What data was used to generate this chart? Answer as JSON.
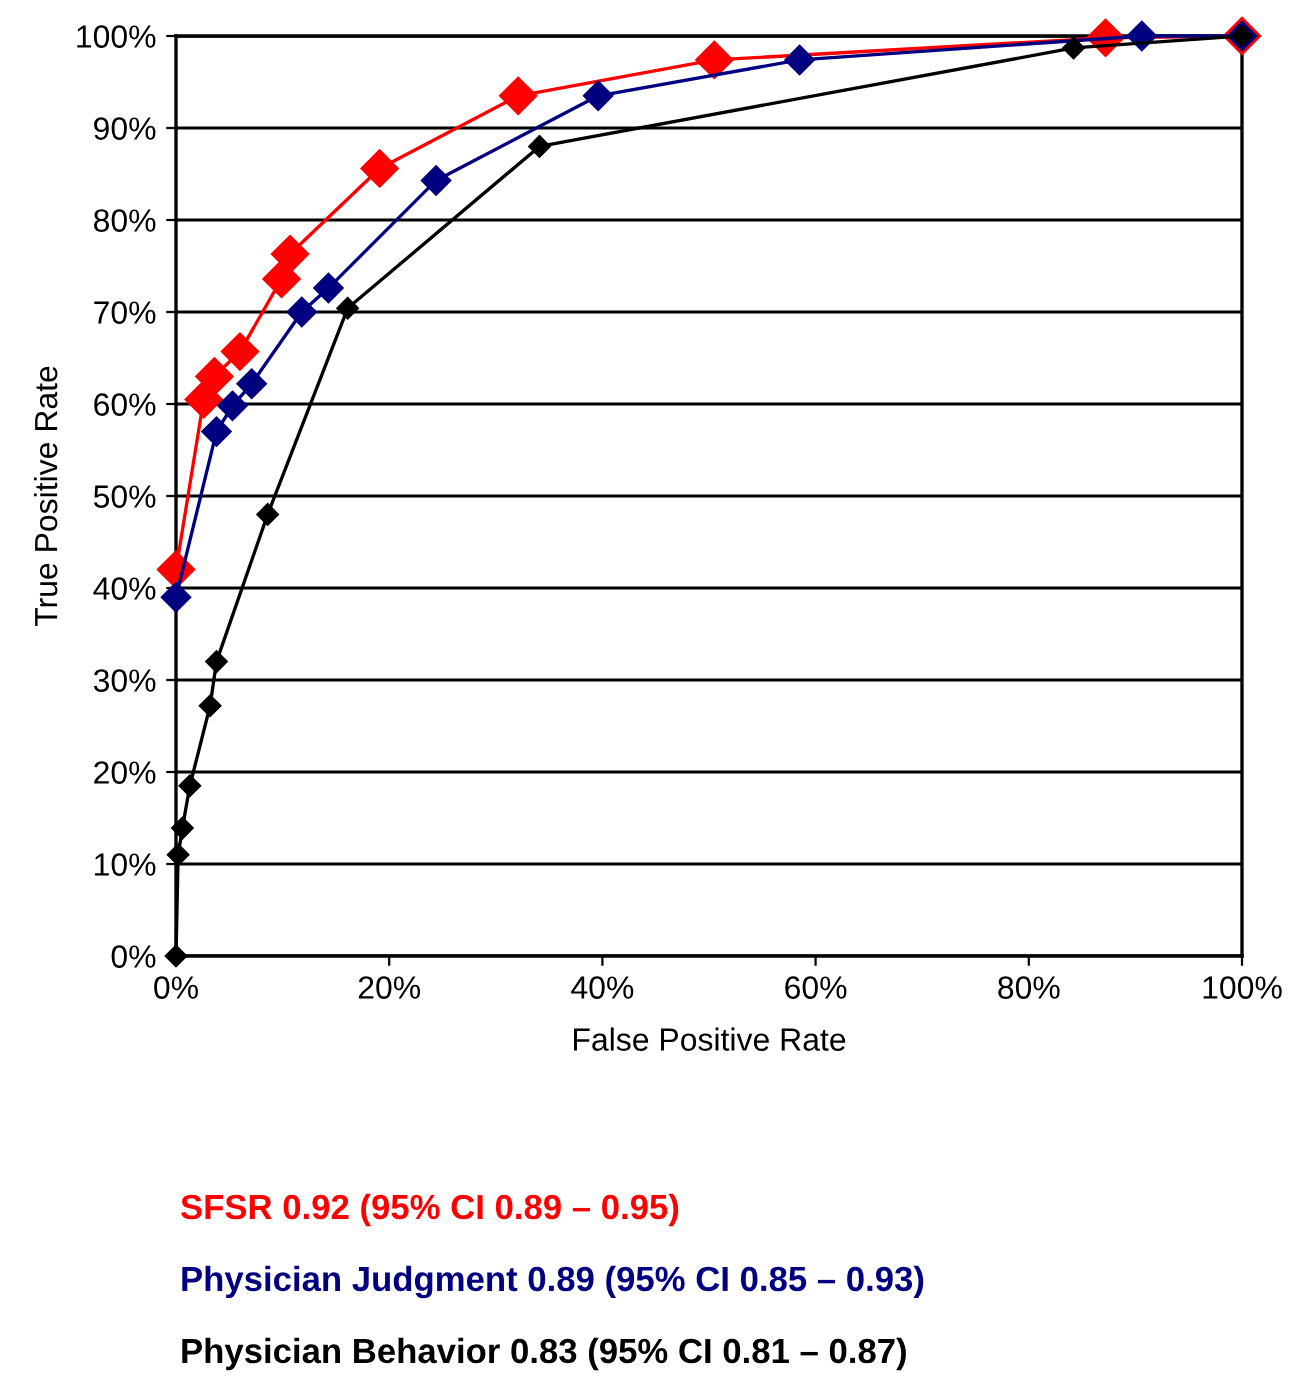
{
  "chart_data": {
    "type": "line",
    "xlabel": "False Positive Rate",
    "ylabel": "True Positive Rate",
    "xlim": [
      0,
      100
    ],
    "ylim": [
      0,
      100
    ],
    "xticks": [
      {
        "value": 0,
        "label": "0%"
      },
      {
        "value": 20,
        "label": "20%"
      },
      {
        "value": 40,
        "label": "40%"
      },
      {
        "value": 60,
        "label": "60%"
      },
      {
        "value": 80,
        "label": "80%"
      },
      {
        "value": 100,
        "label": "100%"
      }
    ],
    "yticks": [
      {
        "value": 0,
        "label": "0%"
      },
      {
        "value": 10,
        "label": "10%"
      },
      {
        "value": 20,
        "label": "20%"
      },
      {
        "value": 30,
        "label": "30%"
      },
      {
        "value": 40,
        "label": "40%"
      },
      {
        "value": 50,
        "label": "50%"
      },
      {
        "value": 60,
        "label": "60%"
      },
      {
        "value": 70,
        "label": "70%"
      },
      {
        "value": 80,
        "label": "80%"
      },
      {
        "value": 90,
        "label": "90%"
      },
      {
        "value": 100,
        "label": "100%"
      }
    ],
    "grid": "y",
    "legend": "bottom",
    "marker": "diamond",
    "line_style": "solid",
    "series": [
      {
        "name": "SFSR 0.92 (95% CI 0.89 – 0.95)",
        "color": "#ff0000",
        "x": [
          0,
          2.6,
          3.6,
          6.0,
          9.9,
          10.7,
          19.1,
          32.1,
          50.5,
          87.2,
          100
        ],
        "values": [
          42,
          60.5,
          63,
          65.7,
          73.6,
          76.3,
          85.6,
          93.5,
          97.4,
          99.8,
          100
        ]
      },
      {
        "name": "Physician Judgment 0.89 (95% CI 0.85 – 0.93)",
        "color": "#000080",
        "x": [
          0,
          3.8,
          5.3,
          7.1,
          11.8,
          14.3,
          24.4,
          39.6,
          58.5,
          90.6,
          100
        ],
        "values": [
          39,
          57,
          59.8,
          62.2,
          70,
          72.6,
          84.3,
          93.5,
          97.4,
          100,
          100
        ]
      },
      {
        "name": "Physician Behavior 0.83 (95% CI 0.81 – 0.87)",
        "color": "#000000",
        "x": [
          0,
          0.2,
          0.6,
          1.3,
          3.2,
          3.8,
          8.6,
          16.1,
          34.1,
          84.2,
          100
        ],
        "values": [
          0,
          11,
          13.9,
          18.5,
          27.2,
          32,
          48,
          70.4,
          88,
          98.7,
          100
        ]
      }
    ]
  }
}
